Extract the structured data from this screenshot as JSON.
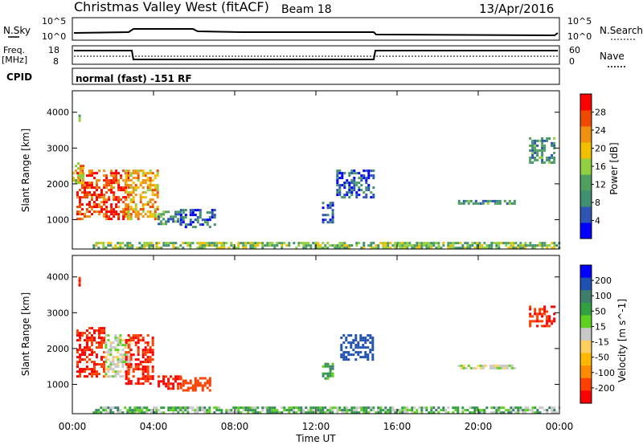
{
  "header": {
    "station": "Christmas Valley West (fitACF)",
    "beam": "Beam 18",
    "date": "13/Apr/2016"
  },
  "noise_panel": {
    "left_label": "N.Sky",
    "left_ticks": [
      "10^5",
      "10^0"
    ],
    "right_label": "N.Search",
    "right_ticks": [
      "10^5",
      "10^0"
    ]
  },
  "freq_panel": {
    "left_label_1": "Freq.",
    "left_label_2": "[MHz]",
    "left_ticks": [
      "18",
      "8"
    ],
    "right_label": "Nave",
    "right_ticks": [
      "60",
      "0"
    ]
  },
  "cpid": {
    "label": "CPID",
    "value": "normal (fast) -151 RF"
  },
  "colors": {
    "power": [
      "#0000ff",
      "#2f55b4",
      "#3f9070",
      "#4fa060",
      "#90d040",
      "#f0c000",
      "#f09010",
      "#f04a00",
      "#ff0000"
    ],
    "velocity": [
      "#ff0000",
      "#ff4000",
      "#ff8c00",
      "#ffb800",
      "#ffd060",
      "#c8c8c8",
      "#60d020",
      "#30a040",
      "#3d7f6a",
      "#2050b0",
      "#0000ff"
    ],
    "noise_line": "#000000",
    "frequency_line": "#000000"
  },
  "chart_data": [
    {
      "type": "heatmap",
      "name": "power",
      "ylabel": "Slant Range [km]",
      "yticks": [
        "1000",
        "2000",
        "3000",
        "4000"
      ],
      "ylim": [
        180,
        4600
      ],
      "xlim": [
        0,
        24
      ],
      "colorbar_label": "Power [dB]",
      "colorbar_ticks": [
        "4",
        "8",
        "12",
        "16",
        "20",
        "24",
        "28"
      ],
      "colorbar_range": [
        0,
        32
      ],
      "regions": [
        {
          "t": [
            0.2,
            2.8
          ],
          "r": [
            1000,
            2400
          ],
          "v": 28
        },
        {
          "t": [
            2.6,
            4.2
          ],
          "r": [
            1000,
            2400
          ],
          "v": 22
        },
        {
          "t": [
            4.2,
            5.3
          ],
          "r": [
            850,
            1250
          ],
          "v": 10
        },
        {
          "t": [
            5.3,
            7.0
          ],
          "r": [
            800,
            1300
          ],
          "v": 6
        },
        {
          "t": [
            0.0,
            0.5
          ],
          "r": [
            2000,
            2600
          ],
          "v": 20
        },
        {
          "t": [
            0.3,
            0.4
          ],
          "r": [
            3700,
            4000
          ],
          "v": 12
        },
        {
          "t": [
            13.0,
            14.8
          ],
          "r": [
            1600,
            2400
          ],
          "v": 6
        },
        {
          "t": [
            12.3,
            12.8
          ],
          "r": [
            900,
            1500
          ],
          "v": 6
        },
        {
          "t": [
            19.0,
            21.8
          ],
          "r": [
            1450,
            1550
          ],
          "v": 10
        },
        {
          "t": [
            22.5,
            23.8
          ],
          "r": [
            2600,
            3300
          ],
          "v": 10
        },
        {
          "t": [
            1.0,
            24.0
          ],
          "r": [
            200,
            380
          ],
          "v": 14
        }
      ]
    },
    {
      "type": "heatmap",
      "name": "velocity",
      "ylabel": "Slant Range [km]",
      "yticks": [
        "1000",
        "2000",
        "3000",
        "4000"
      ],
      "ylim": [
        180,
        4600
      ],
      "xlim": [
        0,
        24
      ],
      "xlabel": "Time UT",
      "xticks": [
        "00:00",
        "04:00",
        "08:00",
        "12:00",
        "16:00",
        "20:00",
        "00:00"
      ],
      "colorbar_label": "Velocity [m s^-1]",
      "colorbar_ticks": [
        "200",
        "100",
        "50",
        "15",
        "-15",
        "-50",
        "-100",
        "-200"
      ],
      "regions": [
        {
          "t": [
            0.2,
            1.6
          ],
          "r": [
            1200,
            2600
          ],
          "v": -200
        },
        {
          "t": [
            1.6,
            2.8
          ],
          "r": [
            1200,
            2400
          ],
          "v": 0
        },
        {
          "t": [
            2.6,
            4.0
          ],
          "r": [
            1000,
            2400
          ],
          "v": -200
        },
        {
          "t": [
            4.2,
            5.3
          ],
          "r": [
            850,
            1250
          ],
          "v": -200
        },
        {
          "t": [
            5.3,
            6.8
          ],
          "r": [
            800,
            1200
          ],
          "v": -150
        },
        {
          "t": [
            13.2,
            14.8
          ],
          "r": [
            1700,
            2400
          ],
          "v": 150
        },
        {
          "t": [
            12.3,
            12.8
          ],
          "r": [
            1100,
            1600
          ],
          "v": 40
        },
        {
          "t": [
            19.0,
            21.8
          ],
          "r": [
            1450,
            1550
          ],
          "v": 0
        },
        {
          "t": [
            22.5,
            23.8
          ],
          "r": [
            2600,
            3200
          ],
          "v": -200
        },
        {
          "t": [
            0.3,
            0.4
          ],
          "r": [
            3700,
            4000
          ],
          "v": -200
        },
        {
          "t": [
            1.0,
            24.0
          ],
          "r": [
            200,
            380
          ],
          "v": 30
        }
      ]
    }
  ]
}
